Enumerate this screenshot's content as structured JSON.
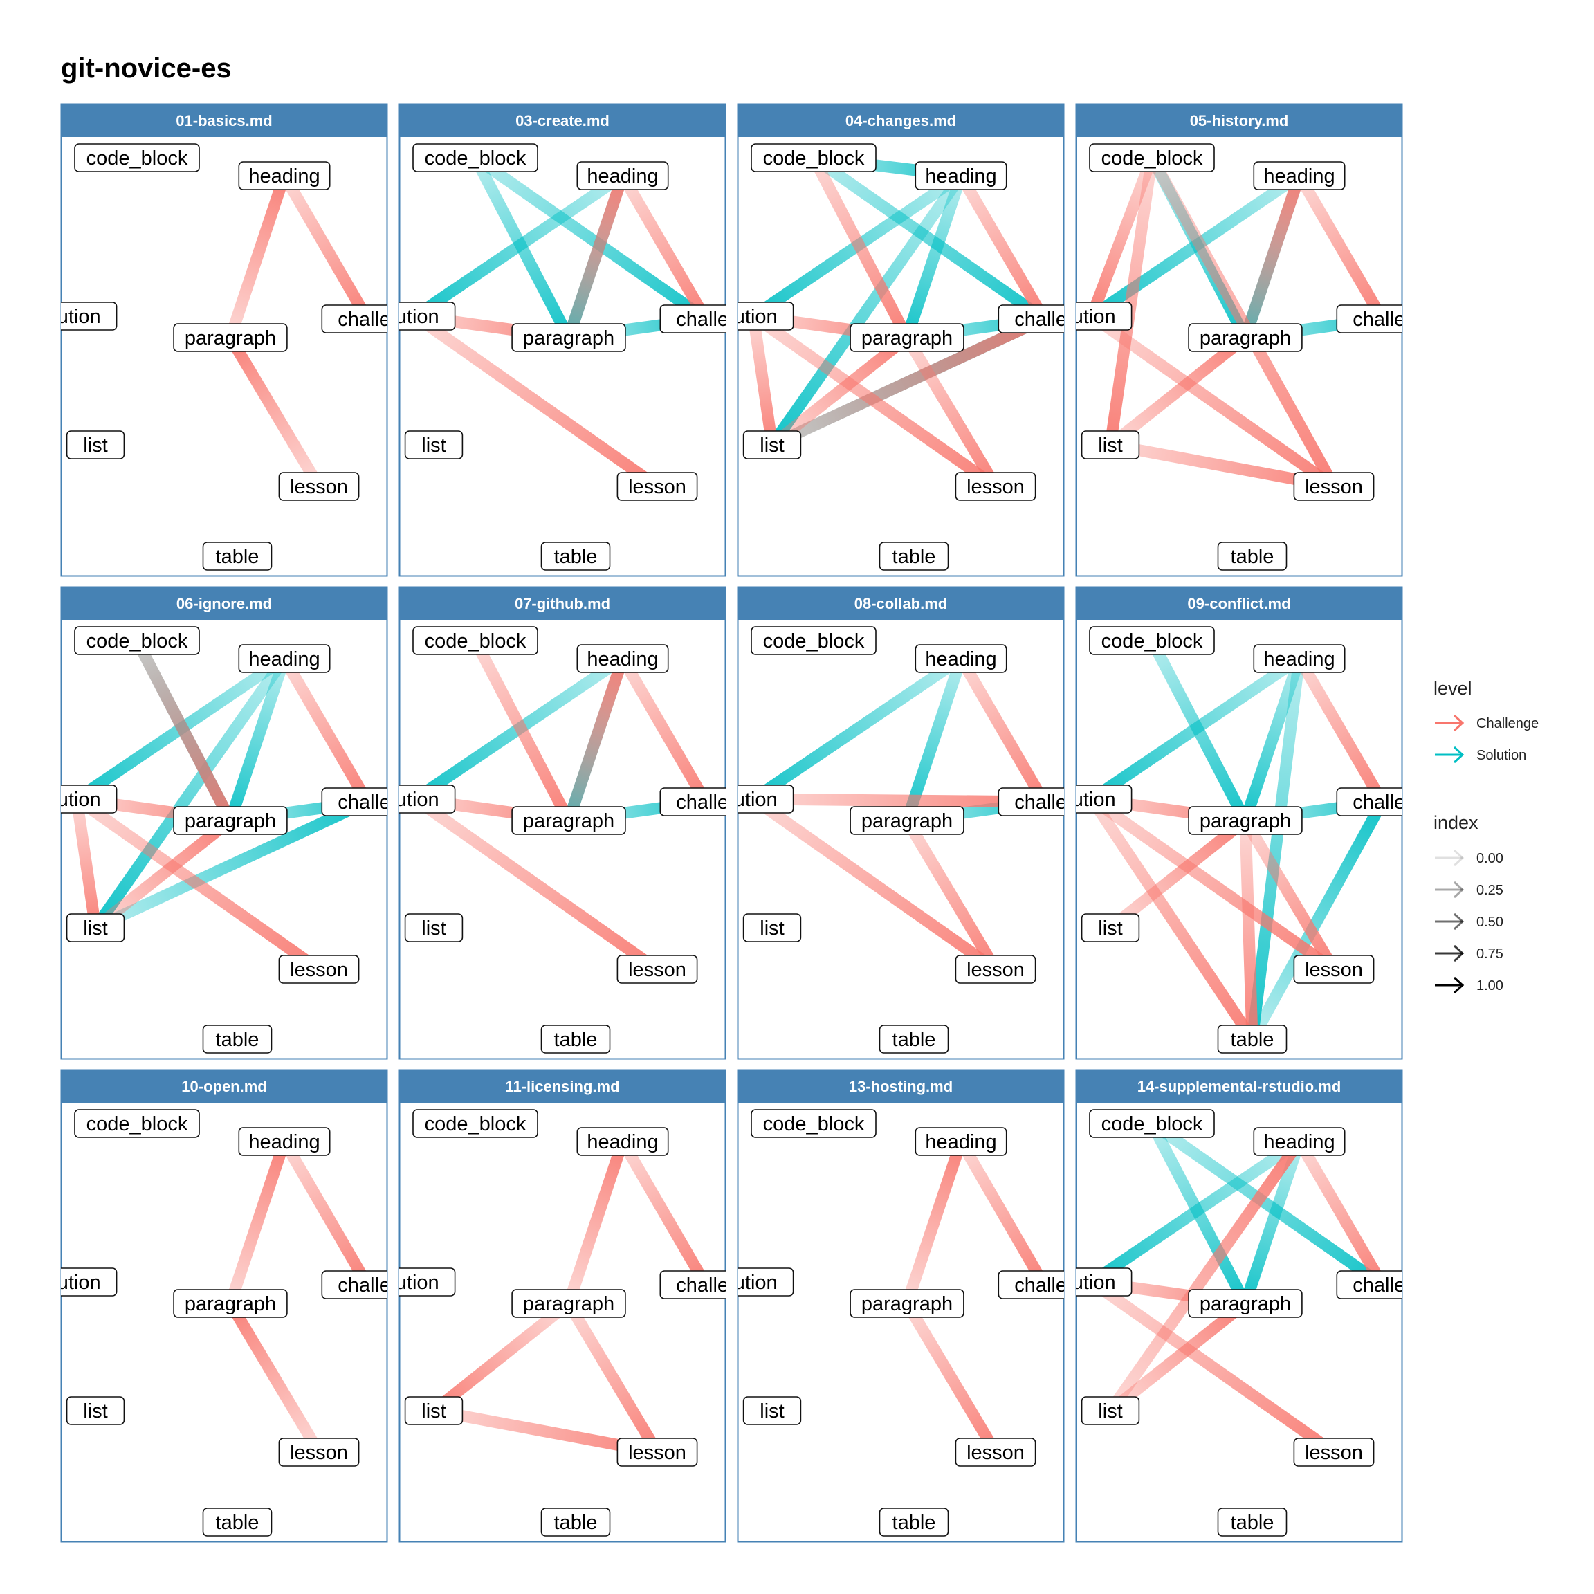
{
  "title": "git-novice-es",
  "colors": {
    "Challenge": "#F8766D",
    "Solution": "#00BFC4",
    "strip_bg": "#4682B4",
    "panel_border": "#4682B4"
  },
  "nodes": [
    "code_block",
    "heading",
    "solution",
    "challenge",
    "paragraph",
    "list",
    "lesson",
    "table"
  ],
  "node_display": {
    "code_block": "code_block",
    "heading": "heading",
    "solution": "lution",
    "challenge": "challer",
    "paragraph": "paragraph",
    "list": "list",
    "lesson": "lesson",
    "table": "table"
  },
  "legend": {
    "level_title": "level",
    "level_items": [
      "Challenge",
      "Solution"
    ],
    "index_title": "index",
    "index_items": [
      "0.00",
      "0.25",
      "0.50",
      "0.75",
      "1.00"
    ]
  },
  "chart_data": {
    "type": "network",
    "facets": [
      {
        "name": "01-basics.md",
        "edges": [
          {
            "from": "lesson",
            "to": "paragraph",
            "level": "Challenge"
          },
          {
            "from": "paragraph",
            "to": "heading",
            "level": "Challenge"
          },
          {
            "from": "heading",
            "to": "challenge",
            "level": "Challenge"
          }
        ]
      },
      {
        "name": "03-create.md",
        "edges": [
          {
            "from": "code_block",
            "to": "paragraph",
            "level": "Solution"
          },
          {
            "from": "code_block",
            "to": "challenge",
            "level": "Solution"
          },
          {
            "from": "heading",
            "to": "paragraph",
            "level": "Solution"
          },
          {
            "from": "heading",
            "to": "solution",
            "level": "Solution"
          },
          {
            "from": "paragraph",
            "to": "challenge",
            "level": "Solution"
          },
          {
            "from": "solution",
            "to": "paragraph",
            "level": "Challenge"
          },
          {
            "from": "solution",
            "to": "lesson",
            "level": "Challenge"
          },
          {
            "from": "heading",
            "to": "challenge",
            "level": "Challenge"
          },
          {
            "from": "paragraph",
            "to": "heading",
            "level": "Challenge"
          }
        ]
      },
      {
        "name": "04-changes.md",
        "edges": [
          {
            "from": "code_block",
            "to": "heading",
            "level": "Solution"
          },
          {
            "from": "code_block",
            "to": "challenge",
            "level": "Solution"
          },
          {
            "from": "heading",
            "to": "paragraph",
            "level": "Solution"
          },
          {
            "from": "heading",
            "to": "solution",
            "level": "Solution"
          },
          {
            "from": "heading",
            "to": "list",
            "level": "Solution"
          },
          {
            "from": "paragraph",
            "to": "challenge",
            "level": "Solution"
          },
          {
            "from": "list",
            "to": "challenge",
            "level": "Solution"
          },
          {
            "from": "code_block",
            "to": "paragraph",
            "level": "Challenge"
          },
          {
            "from": "solution",
            "to": "paragraph",
            "level": "Challenge"
          },
          {
            "from": "solution",
            "to": "list",
            "level": "Challenge"
          },
          {
            "from": "solution",
            "to": "lesson",
            "level": "Challenge"
          },
          {
            "from": "list",
            "to": "paragraph",
            "level": "Challenge"
          },
          {
            "from": "list",
            "to": "challenge",
            "level": "Challenge"
          },
          {
            "from": "heading",
            "to": "challenge",
            "level": "Challenge"
          },
          {
            "from": "paragraph",
            "to": "lesson",
            "level": "Challenge"
          }
        ]
      },
      {
        "name": "05-history.md",
        "edges": [
          {
            "from": "code_block",
            "to": "paragraph",
            "level": "Solution"
          },
          {
            "from": "heading",
            "to": "paragraph",
            "level": "Solution"
          },
          {
            "from": "heading",
            "to": "solution",
            "level": "Solution"
          },
          {
            "from": "paragraph",
            "to": "challenge",
            "level": "Solution"
          },
          {
            "from": "code_block",
            "to": "solution",
            "level": "Challenge"
          },
          {
            "from": "code_block",
            "to": "list",
            "level": "Challenge"
          },
          {
            "from": "code_block",
            "to": "lesson",
            "level": "Challenge"
          },
          {
            "from": "solution",
            "to": "lesson",
            "level": "Challenge"
          },
          {
            "from": "list",
            "to": "paragraph",
            "level": "Challenge"
          },
          {
            "from": "list",
            "to": "lesson",
            "level": "Challenge"
          },
          {
            "from": "heading",
            "to": "challenge",
            "level": "Challenge"
          },
          {
            "from": "paragraph",
            "to": "heading",
            "level": "Challenge"
          }
        ]
      },
      {
        "name": "06-ignore.md",
        "edges": [
          {
            "from": "code_block",
            "to": "paragraph",
            "level": "Solution"
          },
          {
            "from": "heading",
            "to": "paragraph",
            "level": "Solution"
          },
          {
            "from": "heading",
            "to": "solution",
            "level": "Solution"
          },
          {
            "from": "heading",
            "to": "list",
            "level": "Solution"
          },
          {
            "from": "paragraph",
            "to": "challenge",
            "level": "Solution"
          },
          {
            "from": "list",
            "to": "challenge",
            "level": "Solution"
          },
          {
            "from": "solution",
            "to": "paragraph",
            "level": "Challenge"
          },
          {
            "from": "solution",
            "to": "list",
            "level": "Challenge"
          },
          {
            "from": "solution",
            "to": "lesson",
            "level": "Challenge"
          },
          {
            "from": "list",
            "to": "paragraph",
            "level": "Challenge"
          },
          {
            "from": "heading",
            "to": "challenge",
            "level": "Challenge"
          },
          {
            "from": "code_block",
            "to": "paragraph",
            "level": "Challenge"
          }
        ]
      },
      {
        "name": "07-github.md",
        "edges": [
          {
            "from": "heading",
            "to": "paragraph",
            "level": "Solution"
          },
          {
            "from": "heading",
            "to": "solution",
            "level": "Solution"
          },
          {
            "from": "paragraph",
            "to": "challenge",
            "level": "Solution"
          },
          {
            "from": "code_block",
            "to": "paragraph",
            "level": "Challenge"
          },
          {
            "from": "solution",
            "to": "paragraph",
            "level": "Challenge"
          },
          {
            "from": "solution",
            "to": "lesson",
            "level": "Challenge"
          },
          {
            "from": "heading",
            "to": "challenge",
            "level": "Challenge"
          },
          {
            "from": "paragraph",
            "to": "heading",
            "level": "Challenge"
          }
        ]
      },
      {
        "name": "08-collab.md",
        "edges": [
          {
            "from": "heading",
            "to": "paragraph",
            "level": "Solution"
          },
          {
            "from": "heading",
            "to": "solution",
            "level": "Solution"
          },
          {
            "from": "paragraph",
            "to": "challenge",
            "level": "Solution"
          },
          {
            "from": "solution",
            "to": "challenge",
            "level": "Challenge"
          },
          {
            "from": "solution",
            "to": "lesson",
            "level": "Challenge"
          },
          {
            "from": "paragraph",
            "to": "lesson",
            "level": "Challenge"
          },
          {
            "from": "heading",
            "to": "challenge",
            "level": "Challenge"
          }
        ]
      },
      {
        "name": "09-conflict.md",
        "edges": [
          {
            "from": "code_block",
            "to": "paragraph",
            "level": "Solution"
          },
          {
            "from": "heading",
            "to": "paragraph",
            "level": "Solution"
          },
          {
            "from": "heading",
            "to": "solution",
            "level": "Solution"
          },
          {
            "from": "heading",
            "to": "table",
            "level": "Solution"
          },
          {
            "from": "paragraph",
            "to": "challenge",
            "level": "Solution"
          },
          {
            "from": "table",
            "to": "challenge",
            "level": "Solution"
          },
          {
            "from": "solution",
            "to": "paragraph",
            "level": "Challenge"
          },
          {
            "from": "solution",
            "to": "lesson",
            "level": "Challenge"
          },
          {
            "from": "solution",
            "to": "table",
            "level": "Challenge"
          },
          {
            "from": "list",
            "to": "paragraph",
            "level": "Challenge"
          },
          {
            "from": "paragraph",
            "to": "lesson",
            "level": "Challenge"
          },
          {
            "from": "paragraph",
            "to": "table",
            "level": "Challenge"
          },
          {
            "from": "heading",
            "to": "challenge",
            "level": "Challenge"
          }
        ]
      },
      {
        "name": "10-open.md",
        "edges": [
          {
            "from": "paragraph",
            "to": "heading",
            "level": "Challenge"
          },
          {
            "from": "lesson",
            "to": "paragraph",
            "level": "Challenge"
          },
          {
            "from": "heading",
            "to": "challenge",
            "level": "Challenge"
          }
        ]
      },
      {
        "name": "11-licensing.md",
        "edges": [
          {
            "from": "paragraph",
            "to": "heading",
            "level": "Challenge"
          },
          {
            "from": "heading",
            "to": "challenge",
            "level": "Challenge"
          },
          {
            "from": "paragraph",
            "to": "list",
            "level": "Challenge"
          },
          {
            "from": "paragraph",
            "to": "lesson",
            "level": "Challenge"
          },
          {
            "from": "list",
            "to": "lesson",
            "level": "Challenge"
          }
        ]
      },
      {
        "name": "13-hosting.md",
        "edges": [
          {
            "from": "paragraph",
            "to": "heading",
            "level": "Challenge"
          },
          {
            "from": "heading",
            "to": "challenge",
            "level": "Challenge"
          },
          {
            "from": "paragraph",
            "to": "lesson",
            "level": "Challenge"
          }
        ]
      },
      {
        "name": "14-supplemental-rstudio.md",
        "edges": [
          {
            "from": "code_block",
            "to": "paragraph",
            "level": "Solution"
          },
          {
            "from": "code_block",
            "to": "challenge",
            "level": "Solution"
          },
          {
            "from": "heading",
            "to": "paragraph",
            "level": "Solution"
          },
          {
            "from": "heading",
            "to": "solution",
            "level": "Solution"
          },
          {
            "from": "solution",
            "to": "paragraph",
            "level": "Challenge"
          },
          {
            "from": "solution",
            "to": "lesson",
            "level": "Challenge"
          },
          {
            "from": "list",
            "to": "paragraph",
            "level": "Challenge"
          },
          {
            "from": "list",
            "to": "heading",
            "level": "Challenge"
          },
          {
            "from": "heading",
            "to": "challenge",
            "level": "Challenge"
          }
        ]
      }
    ]
  }
}
